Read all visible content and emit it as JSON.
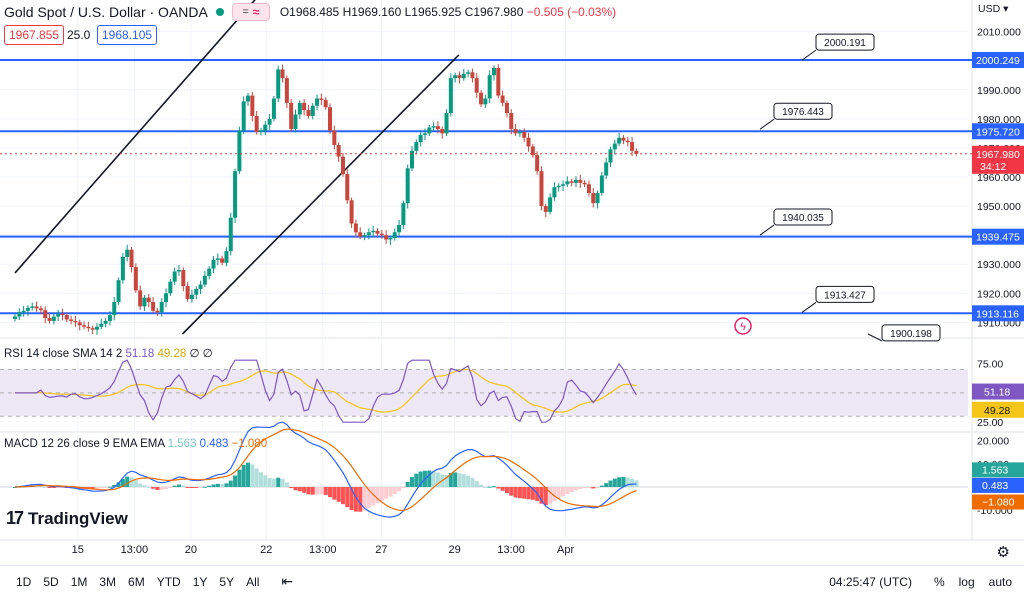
{
  "header": {
    "title": "Gold Spot / U.S. Dollar · OANDA",
    "ohlc_text": "O1968.485 H1969.160 L1965.925 C1967.980",
    "change_text": "−0.505 (−0.03%)",
    "bid": "1967.855",
    "spread": "25.0",
    "ask": "1968.105"
  },
  "axis": {
    "currency": "USD"
  },
  "indicators": {
    "rsi_label": "RSI 14 close SMA 14 2",
    "rsi_val1": "51.18",
    "rsi_val2": "49.28",
    "rsi_val3": "∅ ∅",
    "macd_label": "MACD 12 26 close 9 EMA EMA",
    "macd_val1": "1.563",
    "macd_val2": "0.483",
    "macd_val3": "−1.080"
  },
  "logo_text": "TradingView",
  "bottom": {
    "timeframes": [
      "1D",
      "5D",
      "1M",
      "3M",
      "6M",
      "YTD",
      "1Y",
      "5Y",
      "All"
    ],
    "clock": "04:25:47 (UTC)",
    "percent": "%",
    "log": "log",
    "auto": "auto"
  },
  "colors": {
    "up": "#089981",
    "down": "#c9463d",
    "hline": "#2962ff",
    "trend": "#131722",
    "rsi": "#7e57c2",
    "rsi_sma": "#f5c518",
    "macd": "#2962ff",
    "signal": "#ef6c00",
    "rsi_band_fill": "#ede7f6"
  },
  "chart_data": {
    "type": "candlestick",
    "symbol": "XAUUSD",
    "price_ylim": [
      1906,
      2014
    ],
    "price_ticks": [
      1910,
      1920,
      1930,
      1940,
      1950,
      1960,
      1970,
      1980,
      1990,
      2000,
      2010
    ],
    "price_tick_labels": [
      "1910.000",
      "1920.000",
      "1930.000",
      "1940.000",
      "1950.000",
      "1960.000",
      "1970.000",
      "1980.000",
      "1990.000",
      "2000.000",
      "2010.000"
    ],
    "x_labels": [
      {
        "label": "15",
        "bar": 30
      },
      {
        "label": "13:00",
        "bar": 57
      },
      {
        "label": "20",
        "bar": 84
      },
      {
        "label": "22",
        "bar": 120
      },
      {
        "label": "13:00",
        "bar": 147
      },
      {
        "label": "27",
        "bar": 175
      },
      {
        "label": "29",
        "bar": 210
      },
      {
        "label": "13:00",
        "bar": 237
      },
      {
        "label": "Apr",
        "bar": 263
      }
    ],
    "bars_total": 290,
    "horizontal_levels": [
      {
        "price": 2000.249,
        "label": "2000.249"
      },
      {
        "price": 1975.72,
        "label": "1975.720"
      },
      {
        "price": 1939.475,
        "label": "1939.475"
      },
      {
        "price": 1913.116,
        "label": "1913.116"
      }
    ],
    "callouts": [
      {
        "price": 2000.191,
        "label": "2000.191"
      },
      {
        "price": 1976.443,
        "label": "1976.443"
      },
      {
        "price": 1940.035,
        "label": "1940.035"
      },
      {
        "price": 1913.427,
        "label": "1913.427"
      },
      {
        "price": 1900.198,
        "label": "1900.198"
      }
    ],
    "trendlines": [
      {
        "from": {
          "bar": 0,
          "price": 1927
        },
        "to": {
          "bar": 122,
          "price": 2027
        }
      },
      {
        "from": {
          "bar": 80,
          "price": 1906
        },
        "to": {
          "bar": 212,
          "price": 2002
        }
      }
    ],
    "last_price": {
      "price": 1967.98,
      "label": "1967.980",
      "countdown": "34:12"
    },
    "candles_close": [
      1912.0,
      1913.5,
      1914.0,
      1915.0,
      1915.5,
      1914.8,
      1914.2,
      1911.5,
      1910.5,
      1912.0,
      1913.0,
      1912.5,
      1911.0,
      1910.5,
      1910.0,
      1909.0,
      1908.5,
      1908.0,
      1907.5,
      1908.5,
      1909.5,
      1910.5,
      1912.5,
      1917.0,
      1924.5,
      1932.5,
      1935.0,
      1929.0,
      1921.0,
      1915.5,
      1918.5,
      1917.0,
      1914.0,
      1913.5,
      1917.0,
      1920.0,
      1924.0,
      1927.5,
      1928.0,
      1922.5,
      1918.0,
      1919.5,
      1921.5,
      1923.0,
      1926.0,
      1928.5,
      1931.5,
      1932.0,
      1930.5,
      1934.5,
      1946.0,
      1962.0,
      1976.0,
      1986.0,
      1988.0,
      1981.0,
      1975.5,
      1976.0,
      1978.0,
      1980.0,
      1987.0,
      1997.0,
      1994.0,
      1985.5,
      1976.5,
      1981.5,
      1985.5,
      1983.0,
      1981.0,
      1984.5,
      1987.0,
      1986.5,
      1984.0,
      1976.0,
      1971.0,
      1967.0,
      1961.0,
      1952.0,
      1944.0,
      1941.0,
      1939.5,
      1940.0,
      1941.0,
      1941.5,
      1940.5,
      1940.0,
      1938.5,
      1939.0,
      1941.0,
      1943.5,
      1951.0,
      1963.0,
      1969.0,
      1972.0,
      1974.5,
      1975.0,
      1977.0,
      1977.5,
      1976.5,
      1975.0,
      1982.0,
      1994.0,
      1995.0,
      1994.0,
      1995.5,
      1996.0,
      1994.0,
      1989.0,
      1985.0,
      1987.0,
      1995.0,
      1997.5,
      1988.0,
      1985.5,
      1982.0,
      1976.5,
      1975.0,
      1975.5,
      1973.5,
      1970.5,
      1967.5,
      1962.0,
      1950.0,
      1948.0,
      1953.0,
      1956.5,
      1957.0,
      1957.5,
      1958.5,
      1958.0,
      1959.0,
      1958.0,
      1957.5,
      1954.5,
      1951.0,
      1954.5,
      1960.5,
      1965.0,
      1969.5,
      1971.5,
      1973.5,
      1972.5,
      1972.0,
      1969.0,
      1967.98
    ]
  }
}
